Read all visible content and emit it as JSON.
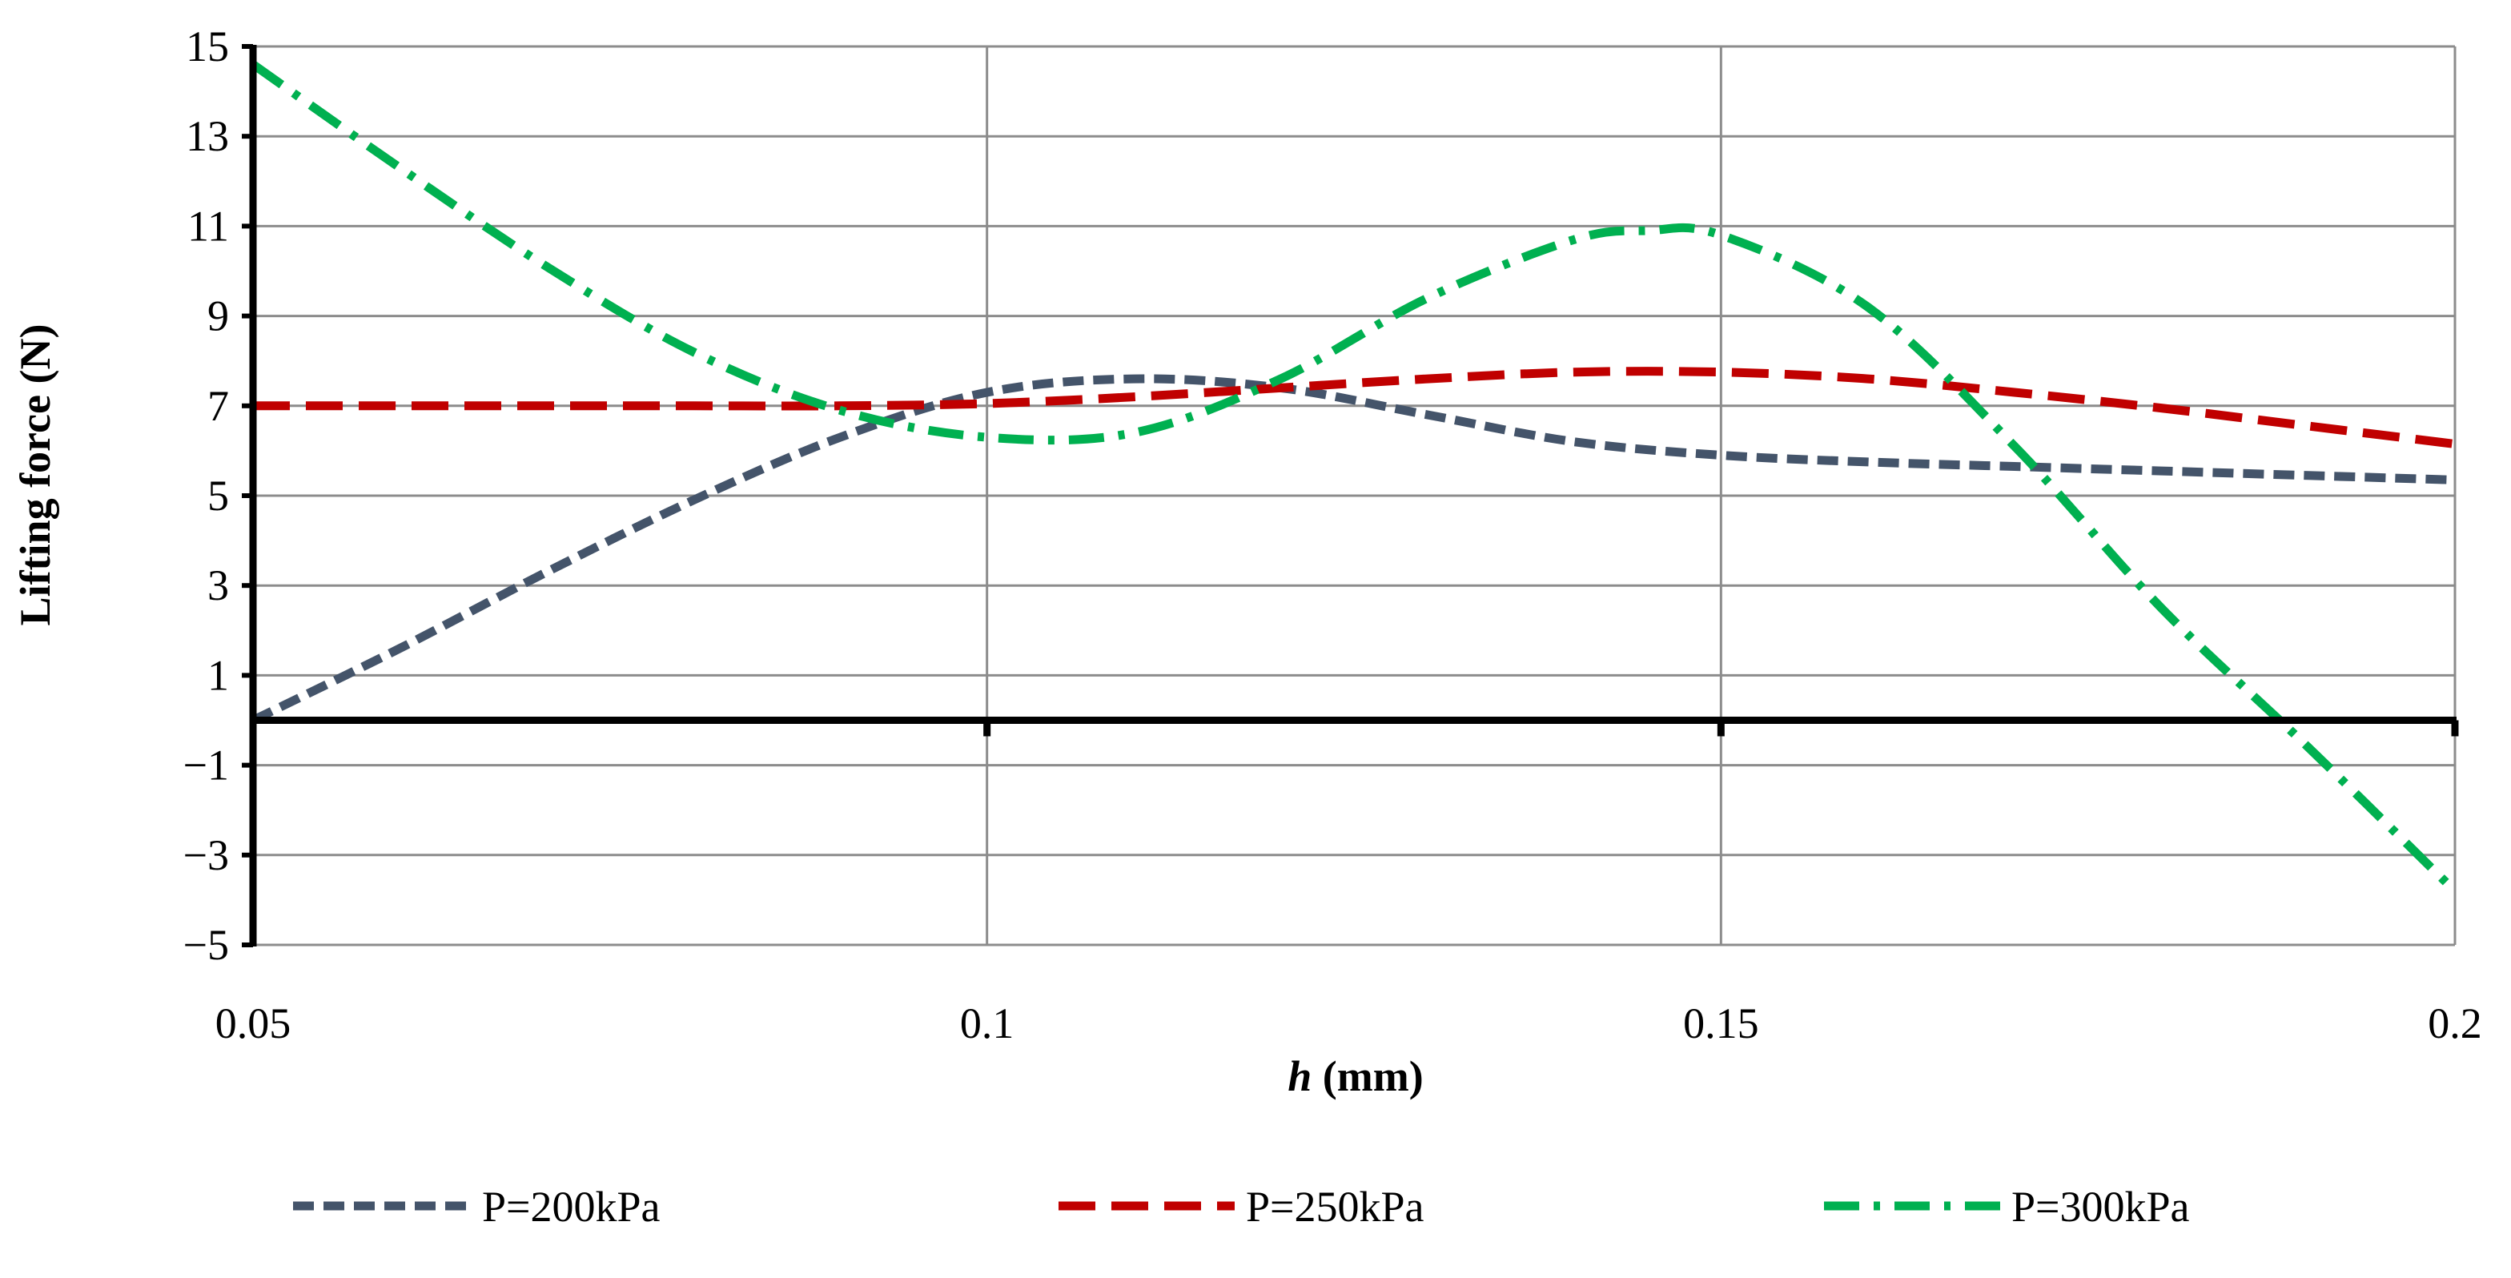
{
  "chart_data": {
    "type": "line",
    "title": "",
    "xlabel_italic": "h",
    "xlabel_rest": " (mm)",
    "ylabel": "Lifting force (N)",
    "xlim": [
      0.05,
      0.2
    ],
    "ylim": [
      -5,
      15
    ],
    "x_ticks": [
      0.05,
      0.1,
      0.15,
      0.2
    ],
    "x_tick_labels": [
      "0.05",
      "0.1",
      "0.15",
      "0.2"
    ],
    "y_ticks": [
      -5,
      -3,
      -1,
      1,
      3,
      5,
      7,
      9,
      11,
      13,
      15
    ],
    "y_tick_labels": [
      "−5",
      "−3",
      "−1",
      "1",
      "3",
      "5",
      "7",
      "9",
      "11",
      "13",
      "15"
    ],
    "grid": true,
    "legend_position": "bottom",
    "series": [
      {
        "name": "P=200kPa",
        "color": "#44546A",
        "style": "short-dash",
        "x": [
          0.05,
          0.06,
          0.07,
          0.08,
          0.09,
          0.1,
          0.11,
          0.12,
          0.13,
          0.14,
          0.15,
          0.16,
          0.17,
          0.18,
          0.19,
          0.2
        ],
        "y": [
          0.0,
          1.6,
          3.3,
          4.9,
          6.3,
          7.3,
          7.6,
          7.4,
          6.8,
          6.2,
          5.9,
          5.75,
          5.65,
          5.55,
          5.45,
          5.35
        ]
      },
      {
        "name": "P=250kPa",
        "color": "#C00000",
        "style": "long-dash",
        "x": [
          0.05,
          0.06,
          0.07,
          0.08,
          0.09,
          0.1,
          0.11,
          0.12,
          0.13,
          0.14,
          0.15,
          0.16,
          0.17,
          0.18,
          0.19,
          0.2
        ],
        "y": [
          7.0,
          7.0,
          7.0,
          7.0,
          7.0,
          7.05,
          7.2,
          7.4,
          7.6,
          7.75,
          7.75,
          7.6,
          7.3,
          6.95,
          6.55,
          6.15
        ]
      },
      {
        "name": "P=300kPa",
        "color": "#00B050",
        "style": "dash-dot",
        "x": [
          0.05,
          0.06,
          0.07,
          0.08,
          0.09,
          0.1,
          0.11,
          0.12,
          0.13,
          0.14,
          0.145,
          0.15,
          0.16,
          0.17,
          0.18,
          0.19,
          0.2
        ],
        "y": [
          14.6,
          12.3,
          10.1,
          8.2,
          6.9,
          6.3,
          6.4,
          7.6,
          9.4,
          10.7,
          10.9,
          10.8,
          9.2,
          6.1,
          2.5,
          -0.6,
          -3.8
        ]
      }
    ]
  }
}
